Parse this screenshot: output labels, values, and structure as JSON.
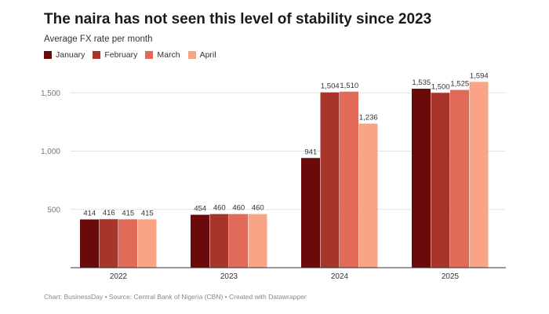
{
  "title": "The naira has not seen this level of stability since 2023",
  "subtitle": "Average FX rate per month",
  "footer": "Chart: BusinessDay • Source: Central Bank of Nigeria (CBN) • Created with Datawrapper",
  "colors": {
    "January": "#6b0a0a",
    "February": "#a8352a",
    "March": "#e26a58",
    "April": "#f9a487"
  },
  "chart_data": {
    "type": "bar",
    "title": "The naira has not seen this level of stability since 2023",
    "subtitle": "Average FX rate per month",
    "categories": [
      "2022",
      "2023",
      "2024",
      "2025"
    ],
    "series": [
      {
        "name": "January",
        "values": [
          414,
          454,
          941,
          1535
        ]
      },
      {
        "name": "February",
        "values": [
          416,
          460,
          1504,
          1500
        ]
      },
      {
        "name": "March",
        "values": [
          415,
          460,
          1510,
          1525
        ]
      },
      {
        "name": "April",
        "values": [
          415,
          460,
          1236,
          1594
        ]
      }
    ],
    "data_labels": [
      [
        "414",
        "416",
        "415",
        "415"
      ],
      [
        "454",
        "460",
        "460",
        "460"
      ],
      [
        "941",
        "1,504",
        "1,510",
        "1,236"
      ],
      [
        "1,535",
        "1,500",
        "1,525",
        "1,594"
      ]
    ],
    "yticks": [
      500,
      1000,
      1500
    ],
    "ytick_labels": [
      "500",
      "1,000",
      "1,500"
    ],
    "ylim": [
      0,
      1700
    ],
    "xlabel": "",
    "ylabel": "",
    "grid": true,
    "legend": "top-left"
  }
}
